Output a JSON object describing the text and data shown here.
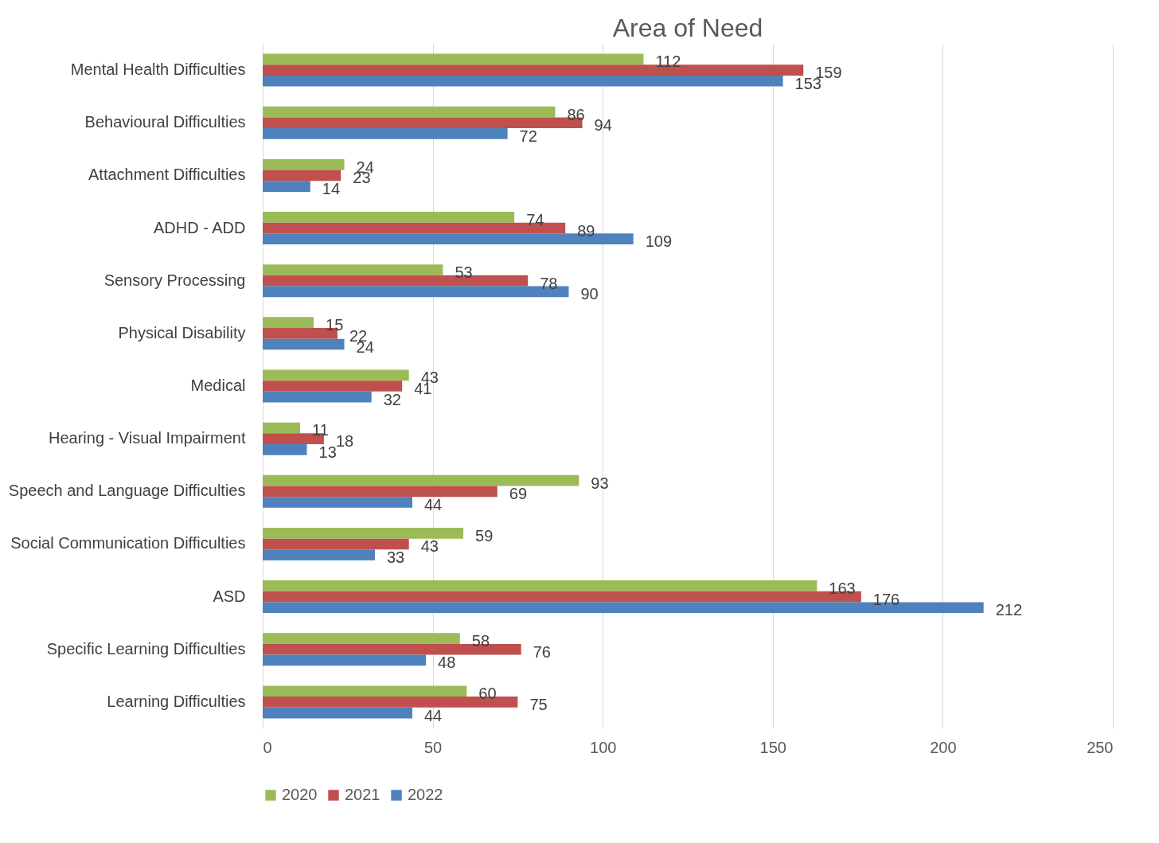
{
  "chart_data": {
    "type": "bar",
    "orientation": "horizontal",
    "title": "Area of Need",
    "categories": [
      "Mental Health Difficulties",
      "Behavioural Difficulties",
      "Attachment Difficulties",
      "ADHD - ADD",
      "Sensory Processing",
      "Physical Disability",
      "Medical",
      "Hearing - Visual Impairment",
      "Speech and Language Difficulties",
      "Social Communication Difficulties",
      "ASD",
      "Specific Learning Difficulties",
      "Learning Difficulties"
    ],
    "series": [
      {
        "name": "2020",
        "color": "#9bbb59",
        "values": [
          112,
          86,
          24,
          74,
          53,
          15,
          43,
          11,
          93,
          59,
          163,
          58,
          60
        ]
      },
      {
        "name": "2021",
        "color": "#c0504d",
        "values": [
          159,
          94,
          23,
          89,
          78,
          22,
          41,
          18,
          69,
          43,
          176,
          76,
          75
        ]
      },
      {
        "name": "2022",
        "color": "#4f81bd",
        "values": [
          153,
          72,
          14,
          109,
          90,
          24,
          32,
          13,
          44,
          33,
          212,
          48,
          44
        ]
      }
    ],
    "xlim": [
      0,
      250
    ],
    "xticks": [
      0,
      50,
      100,
      150,
      200,
      250
    ],
    "grid": "x",
    "legend": "bottom",
    "data_labels": true
  }
}
